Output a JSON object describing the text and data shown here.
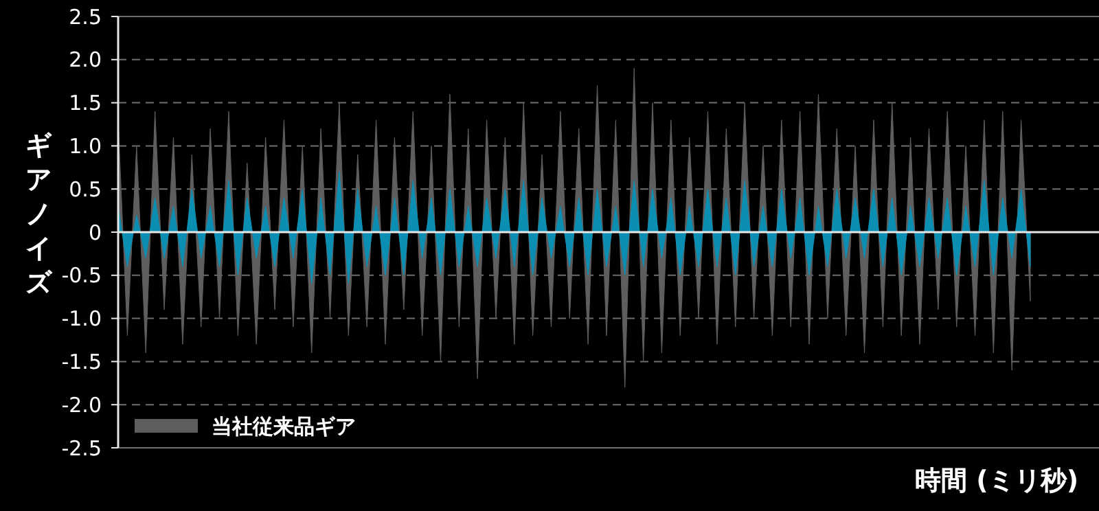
{
  "chart_data": {
    "type": "area",
    "ylabel": "ギアノイズ",
    "xlabel": "時間 (ミリ秒)",
    "categories": [
      null,
      null,
      null,
      null,
      null,
      null,
      null,
      null,
      null,
      null,
      null,
      null,
      null,
      null,
      null,
      null,
      null,
      null,
      null,
      null,
      null,
      null,
      null,
      null,
      null,
      null,
      null,
      null,
      null,
      null,
      null,
      null,
      null,
      null,
      null,
      null,
      null,
      null,
      null,
      null,
      null,
      null,
      null,
      null,
      null,
      null,
      null,
      null,
      null,
      null,
      null,
      null,
      null,
      null,
      null,
      null,
      null,
      null,
      null,
      null,
      null,
      null,
      null,
      null,
      null,
      null,
      null,
      null,
      null,
      null,
      null,
      null,
      null,
      null,
      null,
      null,
      null,
      null,
      null,
      null,
      null,
      null,
      null,
      null,
      null,
      null,
      null,
      null,
      null,
      null,
      null,
      null,
      null,
      null,
      null,
      null,
      null,
      null,
      null,
      null
    ],
    "series": [
      {
        "name": "当社従来品ギア",
        "color": "#5f5d5e",
        "values": [
          1.3,
          -1.2,
          1.0,
          -1.4,
          1.4,
          -0.9,
          1.1,
          -1.3,
          0.9,
          -1.1,
          1.2,
          -1.0,
          1.4,
          -1.2,
          0.8,
          -1.3,
          1.1,
          -0.9,
          1.3,
          -1.1,
          1.0,
          -1.4,
          1.2,
          -1.0,
          1.5,
          -1.2,
          0.9,
          -1.1,
          1.3,
          -1.3,
          1.1,
          -0.9,
          1.4,
          -1.2,
          1.0,
          -1.5,
          1.6,
          -1.1,
          1.2,
          -1.7,
          1.3,
          -1.0,
          1.1,
          -1.3,
          1.5,
          -1.2,
          0.9,
          -1.1,
          1.4,
          -1.0,
          1.2,
          -1.3,
          1.7,
          -1.2,
          1.3,
          -1.8,
          1.9,
          -1.5,
          1.5,
          -1.4,
          1.3,
          -1.2,
          1.1,
          -1.0,
          1.4,
          -1.3,
          1.2,
          -1.1,
          1.5,
          -1.0,
          1.0,
          -1.2,
          1.3,
          -1.1,
          1.4,
          -1.3,
          1.6,
          -1.0,
          1.2,
          -1.2,
          1.0,
          -1.4,
          1.3,
          -1.1,
          1.5,
          -1.2,
          1.1,
          -1.3,
          1.2,
          -0.9,
          1.4,
          -1.1,
          1.0,
          -1.2,
          1.3,
          -1.4,
          1.4,
          -1.6,
          1.3,
          -0.8
        ]
      },
      {
        "color": "#0a8fb3",
        "values": [
          0.3,
          -0.4,
          0.2,
          -0.3,
          0.4,
          -0.3,
          0.3,
          -0.4,
          0.5,
          -0.3,
          0.3,
          -0.4,
          0.6,
          -0.5,
          0.4,
          -0.3,
          0.3,
          -0.4,
          0.4,
          -0.3,
          0.5,
          -0.6,
          0.4,
          -0.5,
          0.7,
          -0.6,
          0.5,
          -0.4,
          0.3,
          -0.5,
          0.4,
          -0.5,
          0.6,
          -0.3,
          0.4,
          -0.5,
          0.5,
          -0.4,
          0.3,
          -0.4,
          0.4,
          -0.3,
          0.5,
          -0.4,
          0.6,
          -0.5,
          0.4,
          -0.3,
          0.3,
          -0.4,
          0.4,
          -0.5,
          0.5,
          -0.4,
          0.3,
          -0.5,
          0.6,
          -0.4,
          0.5,
          -0.3,
          0.4,
          -0.5,
          0.3,
          -0.4,
          0.5,
          -0.4,
          0.4,
          -0.5,
          0.6,
          -0.4,
          0.3,
          -0.4,
          0.5,
          -0.3,
          0.4,
          -0.5,
          0.3,
          -0.4,
          0.5,
          -0.3,
          0.4,
          -0.3,
          0.5,
          -0.4,
          0.4,
          -0.5,
          0.3,
          -0.4,
          0.4,
          -0.3,
          0.4,
          -0.5,
          0.3,
          -0.4,
          0.6,
          -0.5,
          0.4,
          -0.3,
          0.5,
          -0.4
        ]
      }
    ],
    "ylim": [
      -2.5,
      2.5
    ],
    "yticks": [
      {
        "value": 2.5,
        "label": "2.5"
      },
      {
        "value": 2,
        "label": "2.0"
      },
      {
        "value": 1.5,
        "label": "1.5"
      },
      {
        "value": 1,
        "label": "1.0"
      },
      {
        "value": 0.5,
        "label": "0.5"
      },
      0,
      {
        "value": -0.5,
        "label": "-0.5"
      },
      {
        "value": -1,
        "label": "-1.0"
      },
      {
        "value": -1.5,
        "label": "-1.5"
      },
      {
        "value": -2,
        "label": "-2.0"
      },
      {
        "value": -2.5,
        "label": "-2.5"
      }
    ],
    "grid": "y",
    "legend": "bottom left"
  }
}
